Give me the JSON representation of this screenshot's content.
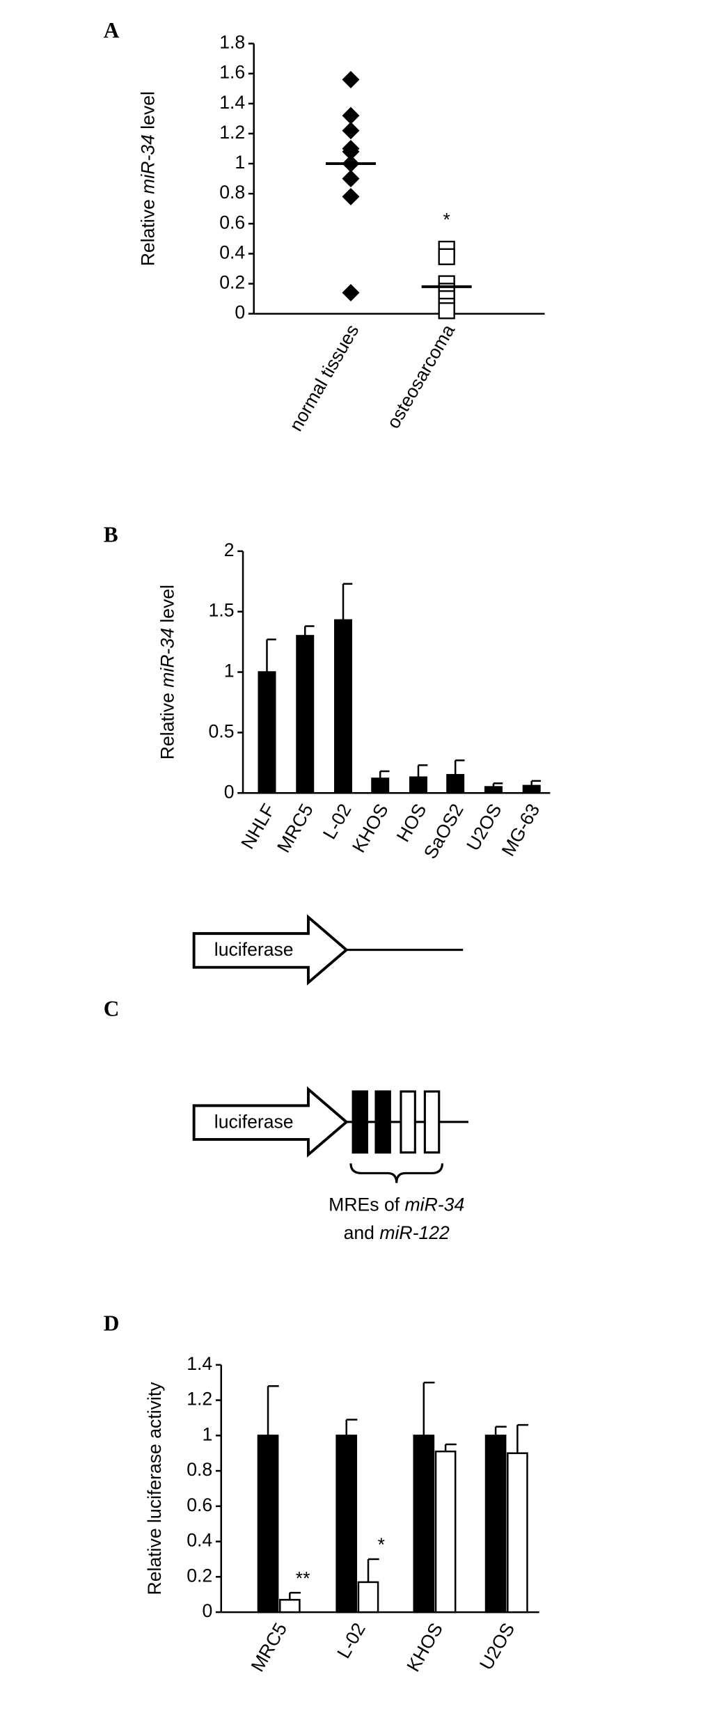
{
  "chart_data": [
    {
      "type": "strip",
      "panel": "A",
      "ylabel": [
        "Relative ",
        "miR-34",
        " level"
      ],
      "categories": [
        "normal tissues",
        "osteosarcoma"
      ],
      "values": [
        [
          1.56,
          1.32,
          1.22,
          1.1,
          1.08,
          1.0,
          0.9,
          0.78,
          0.14
        ],
        [
          0.43,
          0.38,
          0.2,
          0.15,
          0.1,
          0.05,
          0.02
        ]
      ],
      "means": [
        1.0,
        0.18
      ],
      "markers": [
        "diamond",
        "open-square"
      ],
      "color": "#000000",
      "annotations": [
        null,
        "*"
      ],
      "ylim": [
        0,
        1.8
      ],
      "yticks": [
        0,
        0.2,
        0.4,
        0.6,
        0.8,
        1,
        1.2,
        1.4,
        1.6,
        1.8
      ]
    },
    {
      "type": "bar",
      "panel": "B",
      "ylabel": [
        "Relative ",
        "miR-34",
        " level"
      ],
      "categories": [
        "NHLF",
        "MRC5",
        "L-02",
        "KHOS",
        "HOS",
        "SaOS2",
        "U2OS",
        "MG-63"
      ],
      "series": [
        {
          "color": "#000000",
          "values": [
            1.0,
            1.3,
            1.43,
            0.12,
            0.13,
            0.15,
            0.05,
            0.06
          ],
          "errors": [
            0.27,
            0.08,
            0.3,
            0.06,
            0.1,
            0.12,
            0.03,
            0.04
          ]
        }
      ],
      "ylim": [
        0,
        2
      ],
      "yticks": [
        0,
        0.5,
        1,
        1.5,
        2
      ]
    },
    {
      "type": "bar",
      "panel": "D",
      "ylabel": [
        "Relative luciferase activity"
      ],
      "categories": [
        "MRC5",
        "L-02",
        "KHOS",
        "U2OS"
      ],
      "series": [
        {
          "color": "#000000",
          "values": [
            1,
            1,
            1,
            1
          ],
          "errors": [
            0.28,
            0.09,
            0.3,
            0.05
          ]
        },
        {
          "color": "#ffffff",
          "values": [
            0.07,
            0.17,
            0.91,
            0.9
          ],
          "errors": [
            0.04,
            0.13,
            0.04,
            0.16
          ],
          "annotations": [
            "**",
            "*",
            null,
            null
          ]
        }
      ],
      "ylim": [
        0,
        1.4
      ],
      "yticks": [
        0,
        0.2,
        0.4,
        0.6,
        0.8,
        1,
        1.2,
        1.4
      ]
    }
  ],
  "diagram": {
    "panel": "C",
    "constructs": [
      "luciferase",
      "luciferase"
    ],
    "caption": [
      [
        "MREs of ",
        "miR-34"
      ],
      [
        "and ",
        "miR-122"
      ]
    ]
  }
}
